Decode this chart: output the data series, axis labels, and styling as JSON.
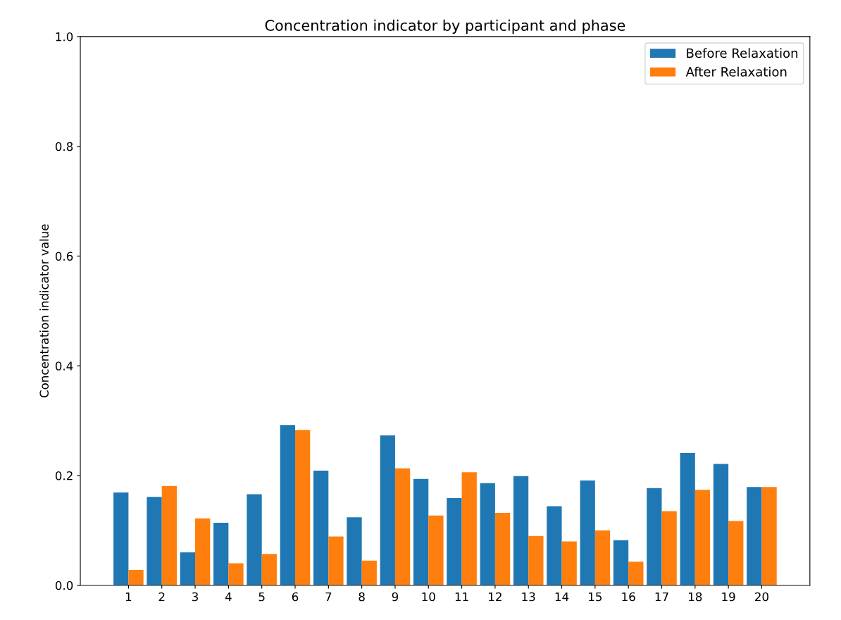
{
  "chart_data": {
    "type": "bar",
    "title": "Concentration indicator by participant and phase",
    "ylabel": "Concentration indicator value",
    "categories": [
      "1",
      "2",
      "3",
      "4",
      "5",
      "6",
      "7",
      "8",
      "9",
      "10",
      "11",
      "12",
      "13",
      "14",
      "15",
      "16",
      "17",
      "18",
      "19",
      "20"
    ],
    "series": [
      {
        "name": "Before Relaxation",
        "color": "#1f77b4",
        "values": [
          0.169,
          0.161,
          0.06,
          0.114,
          0.166,
          0.292,
          0.209,
          0.124,
          0.273,
          0.194,
          0.159,
          0.186,
          0.199,
          0.144,
          0.191,
          0.082,
          0.177,
          0.241,
          0.221,
          0.179
        ]
      },
      {
        "name": "After Relaxation",
        "color": "#ff7f0e",
        "values": [
          0.028,
          0.181,
          0.122,
          0.04,
          0.057,
          0.283,
          0.089,
          0.045,
          0.213,
          0.127,
          0.206,
          0.132,
          0.09,
          0.08,
          0.1,
          0.043,
          0.135,
          0.174,
          0.117,
          0.179
        ]
      }
    ],
    "ylim": [
      0,
      1.0
    ],
    "yticks": [
      {
        "value": 0,
        "label": "0.0"
      },
      0.2,
      0.4,
      0.6,
      0.8,
      {
        "value": 1.0,
        "label": "1.0"
      }
    ],
    "grid": false,
    "legend": "top right"
  }
}
